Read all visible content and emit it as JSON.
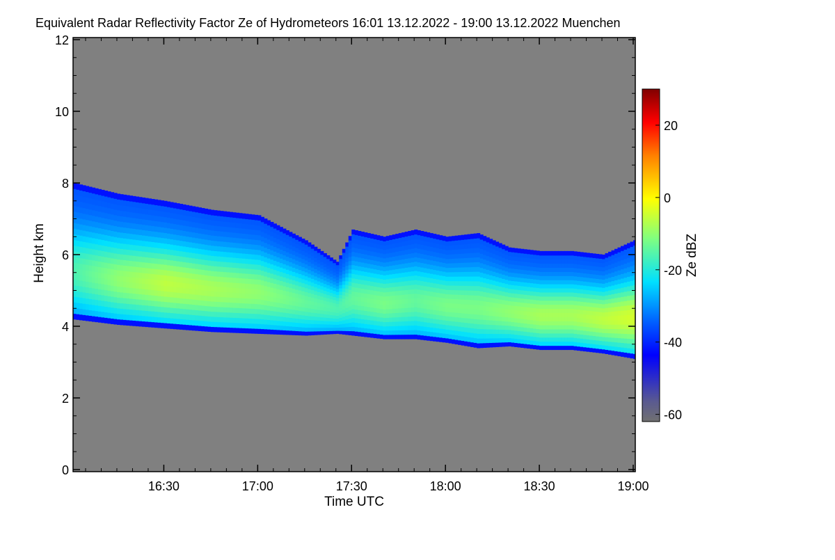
{
  "chart_data": {
    "type": "heatmap",
    "title": "Equivalent Radar Reflectivity Factor Ze of Hydrometeors   16:01 13.12.2022 - 19:00 13.12.2022 Muenchen",
    "xlabel": "Time UTC",
    "ylabel": "Height km",
    "colorbar_label": "Ze dBZ",
    "x_range_minutes": [
      961,
      1140
    ],
    "x_ticks": [
      {
        "label": "16:30",
        "minute": 990
      },
      {
        "label": "17:00",
        "minute": 1020
      },
      {
        "label": "17:30",
        "minute": 1050
      },
      {
        "label": "18:00",
        "minute": 1080
      },
      {
        "label": "18:30",
        "minute": 1110
      },
      {
        "label": "19:00",
        "minute": 1140
      }
    ],
    "ylim": [
      0,
      12
    ],
    "y_ticks": [
      0,
      2,
      4,
      6,
      8,
      10,
      12
    ],
    "colorbar_range": [
      -62,
      30
    ],
    "colorbar_ticks": [
      -60,
      -40,
      -20,
      0,
      20
    ],
    "background_color": "#808080",
    "colormap": "jet",
    "cloud_layer": {
      "description_times_minutes": [
        961,
        975,
        990,
        1005,
        1020,
        1035,
        1045,
        1050,
        1060,
        1070,
        1080,
        1090,
        1100,
        1110,
        1120,
        1130,
        1140
      ],
      "top_km": [
        8.0,
        7.7,
        7.5,
        7.25,
        7.1,
        6.4,
        5.8,
        6.7,
        6.5,
        6.7,
        6.5,
        6.6,
        6.2,
        6.1,
        6.1,
        6.0,
        6.4
      ],
      "base_km": [
        4.2,
        4.05,
        3.95,
        3.85,
        3.8,
        3.75,
        3.8,
        3.75,
        3.65,
        3.65,
        3.55,
        3.4,
        3.45,
        3.35,
        3.35,
        3.25,
        3.1
      ],
      "core_dbz": [
        -16,
        -10,
        -6,
        -8,
        -10,
        -14,
        -16,
        -14,
        -12,
        -14,
        -12,
        -12,
        -10,
        -8,
        -8,
        -6,
        -4
      ]
    }
  }
}
